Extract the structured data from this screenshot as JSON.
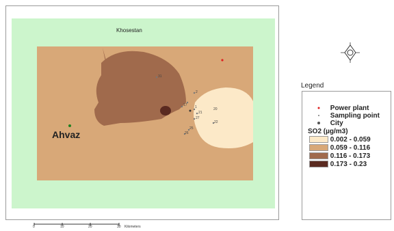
{
  "map": {
    "province_label": "Khosestan",
    "city_label": "Ahvaz",
    "sampling_point_labels": [
      "2",
      "20",
      "21",
      "22",
      "1",
      "25",
      "26",
      "27",
      "31",
      "17"
    ]
  },
  "legend": {
    "title": "Legend",
    "power_plant": "Power plant",
    "sampling_point": "Sampling point",
    "city": "City",
    "so2_title": "SO2  (µg/m3)",
    "classes": [
      {
        "label": "0.002 - 0.059",
        "color": "#fce9c8"
      },
      {
        "label": "0.059 - 0.116",
        "color": "#d8a878"
      },
      {
        "label": "0.116 - 0.173",
        "color": "#a06a4c"
      },
      {
        "label": "0.173 - 0.23",
        "color": "#5a2a20"
      }
    ]
  },
  "scale_bar": {
    "ticks": [
      "0",
      "10",
      "20",
      "30"
    ],
    "unit": "Kilometers"
  },
  "colors": {
    "background": "#ccf5cc",
    "power_plant": "#e02020",
    "sampling_point": "#777777",
    "city": "#208020"
  }
}
